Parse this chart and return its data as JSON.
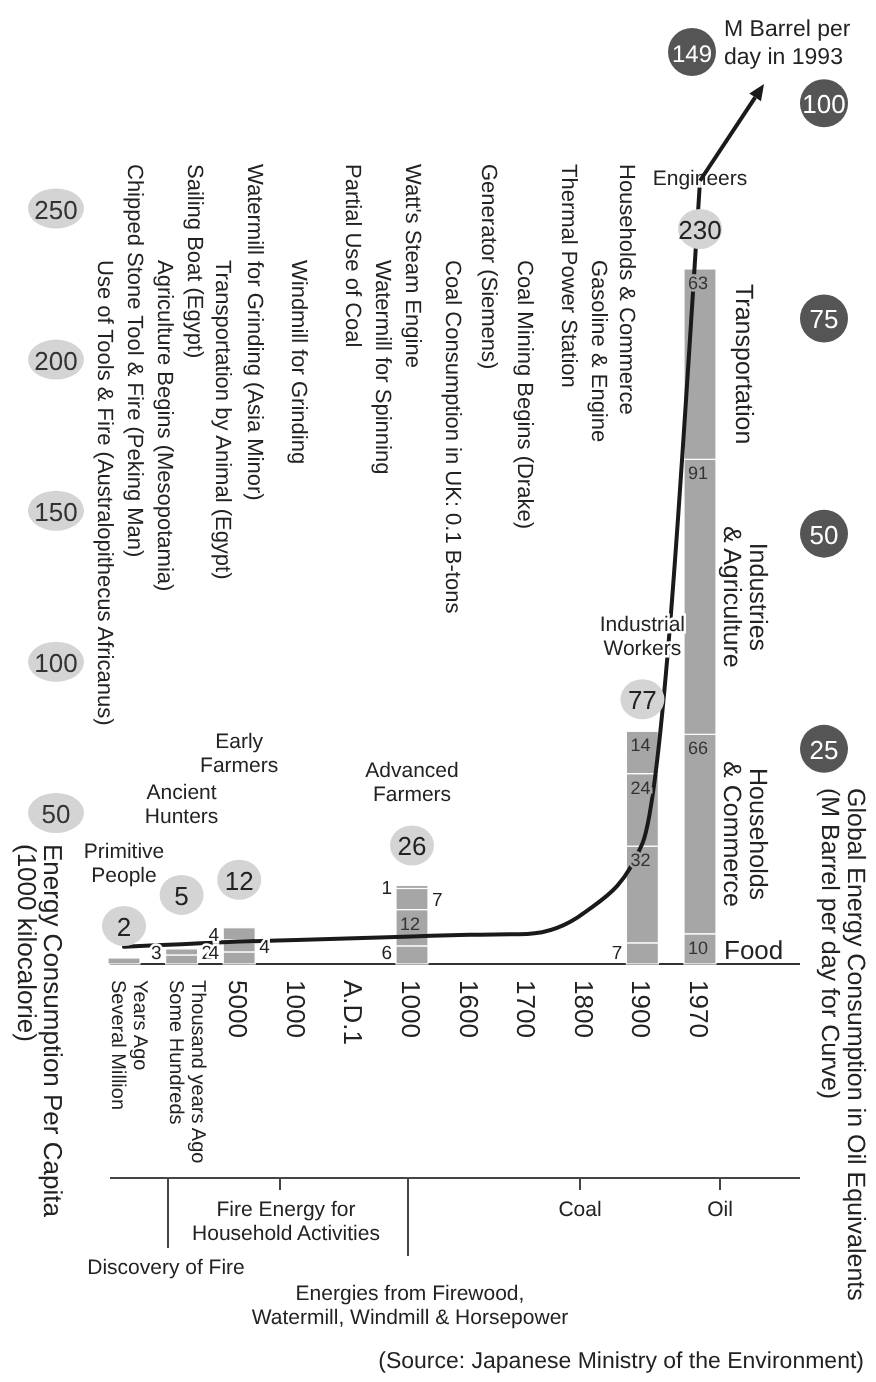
{
  "chart_data": {
    "type": "bar",
    "stacked": true,
    "categories": [
      "Several Million Years Ago",
      "Some Hundreds Thousand years Ago",
      "5000",
      "1000",
      "A.D.1",
      "1000",
      "1600",
      "1700",
      "1800",
      "1900",
      "1970"
    ],
    "series": [
      {
        "name": "Food",
        "color": "#a6a6a6",
        "values": [
          2,
          3,
          4,
          null,
          null,
          6,
          null,
          null,
          null,
          7,
          10
        ],
        "value_labels": [
          null,
          "3",
          "4",
          null,
          null,
          "6",
          null,
          null,
          null,
          "7",
          "10"
        ]
      },
      {
        "name": "Households & Commerce",
        "color": "#a6a6a6",
        "values": [
          null,
          2,
          4,
          null,
          null,
          12,
          null,
          null,
          null,
          32,
          66
        ],
        "value_labels": [
          null,
          "2",
          "4",
          null,
          null,
          "12",
          null,
          null,
          null,
          "32",
          "66"
        ]
      },
      {
        "name": "Industries & Agriculture",
        "color": "#a6a6a6",
        "values": [
          null,
          null,
          4,
          null,
          null,
          7,
          null,
          null,
          null,
          24,
          91
        ],
        "value_labels": [
          null,
          null,
          "4",
          null,
          null,
          "7",
          null,
          null,
          null,
          "24",
          "91"
        ]
      },
      {
        "name": "Transportation",
        "color": "#a6a6a6",
        "values": [
          null,
          null,
          null,
          null,
          null,
          1,
          null,
          null,
          null,
          14,
          63
        ],
        "value_labels": [
          null,
          null,
          null,
          null,
          null,
          "1",
          null,
          null,
          null,
          "14",
          "63"
        ]
      },
      {
        "type": "line",
        "axis": "y2",
        "color": "#1a1a1a",
        "values": [
          2,
          2.3,
          2.6,
          2.8,
          3,
          3.2,
          3.4,
          3.5,
          6,
          14,
          91
        ]
      }
    ],
    "totals": [
      "2",
      "5",
      "12",
      null,
      null,
      "26",
      null,
      null,
      null,
      "77",
      "230"
    ],
    "ylim": [
      0,
      319
    ],
    "yticks": [
      50,
      100,
      150,
      200,
      250
    ],
    "y2lim": [
      0,
      112
    ],
    "y2ticks": [
      25,
      50,
      75,
      100
    ],
    "ylabel": "Energy Consumption Per Capita (1000 kilocalorie)",
    "y2label": "Global Energy Consumption in Oil Equivalents (M Barrel per day for Curve)",
    "annotations": [
      "Primitive People",
      "Ancient Hunters",
      "Early Farmers",
      "Advanced Farmers",
      "Industrial Workers",
      "Engineers",
      "Use of Tools & Fire (Australopithecus Africanus)",
      "Chipped Stone Tool & Fire (Peking Man)",
      "Agriculture Begins (Mesopotamia)",
      "Sailing Boat (Egypt)",
      "Transportation by Animal (Egypt)",
      "Watermill for Grinding (Asia Minor)",
      "Windmill for Grinding",
      "Partial Use of Coal",
      "Watermill for Spinning",
      "Watt's Steam Engine",
      "Coal Consumption in UK: 0.1 B-tons",
      "Generator (Siemens)",
      "Coal Mining Begins (Drake)",
      "Thermal Power Station",
      "Gasoline & Engine",
      "Households & Commerce",
      "149",
      "M Barrel per day in 1993",
      "Discovery of Fire",
      "Fire Energy for Household Activities",
      "Energies from Firewood, Watermill, Windmill & Horsepower",
      "Coal",
      "Oil",
      "(Source: Japanese Ministry of the Environment)"
    ]
  }
}
